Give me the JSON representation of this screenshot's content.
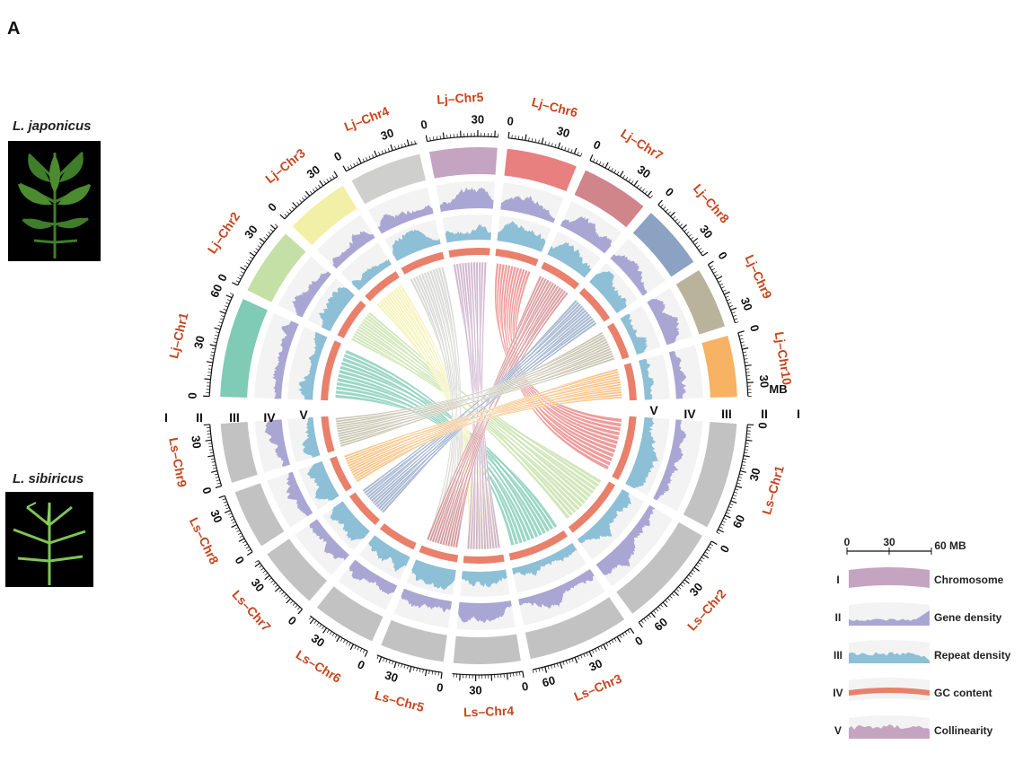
{
  "panel_label": "A",
  "species": {
    "top": "L. japonicus",
    "bottom": "L. sibiricus"
  },
  "unit_label": "MB",
  "track_labels": [
    "I",
    "II",
    "III",
    "IV",
    "V"
  ],
  "chromosomes_top": [
    {
      "name": "Lj–Chr1",
      "length": 62,
      "color": "#7fcbb5",
      "ticks": [
        0,
        30,
        60
      ]
    },
    {
      "name": "Lj–Chr2",
      "length": 42,
      "color": "#c4e0a6",
      "ticks": [
        0,
        30
      ]
    },
    {
      "name": "Lj–Chr3",
      "length": 40,
      "color": "#f2f0a6",
      "ticks": [
        0,
        30
      ]
    },
    {
      "name": "Lj–Chr4",
      "length": 45,
      "color": "#cfcfcd",
      "ticks": [
        0,
        30
      ]
    },
    {
      "name": "Lj–Chr5",
      "length": 42,
      "color": "#c5a4c2",
      "ticks": [
        0,
        30
      ]
    },
    {
      "name": "Lj–Chr6",
      "length": 44,
      "color": "#e88080",
      "ticks": [
        0,
        30
      ]
    },
    {
      "name": "Lj–Chr7",
      "length": 42,
      "color": "#cf8589",
      "ticks": [
        0,
        30
      ]
    },
    {
      "name": "Lj–Chr8",
      "length": 40,
      "color": "#8ca2c3",
      "ticks": [
        0,
        30
      ]
    },
    {
      "name": "Lj–Chr9",
      "length": 38,
      "color": "#b9b39b",
      "ticks": [
        0,
        30
      ]
    },
    {
      "name": "Lj–Chr10",
      "length": 38,
      "color": "#f7b263",
      "ticks": [
        0,
        30
      ]
    }
  ],
  "chromosomes_bottom": [
    {
      "name": "Ls–Chr1",
      "length": 72,
      "ticks": [
        0,
        30,
        60
      ]
    },
    {
      "name": "Ls–Chr2",
      "length": 70,
      "ticks": [
        0,
        30,
        60
      ]
    },
    {
      "name": "Ls–Chr3",
      "length": 68,
      "ticks": [
        0,
        30,
        60
      ]
    },
    {
      "name": "Ls–Chr4",
      "length": 45,
      "ticks": [
        0,
        30
      ]
    },
    {
      "name": "Ls–Chr5",
      "length": 43,
      "ticks": [
        0,
        30
      ]
    },
    {
      "name": "Ls–Chr6",
      "length": 43,
      "ticks": [
        0,
        30
      ]
    },
    {
      "name": "Ls–Chr7",
      "length": 42,
      "ticks": [
        0,
        30
      ]
    },
    {
      "name": "Ls–Chr8",
      "length": 40,
      "ticks": [
        0,
        30
      ]
    },
    {
      "name": "Ls–Chr9",
      "length": 40,
      "ticks": [
        0,
        30
      ]
    }
  ],
  "bottom_chr_color": "#c2c2c2",
  "gene_density_color": "#aaa6d3",
  "repeat_density_color": "#8dbfd6",
  "gc_color": "#e9806b",
  "track_background": "#f3f3f3",
  "legend": {
    "scale_ticks": [
      "0",
      "30",
      "60 MB"
    ],
    "items": [
      {
        "roman": "I",
        "label": "Chromosome",
        "color": "#c5a4c2"
      },
      {
        "roman": "II",
        "label": "Gene density",
        "color": "#aaa6d3"
      },
      {
        "roman": "III",
        "label": "Repeat density",
        "color": "#8dbfd6"
      },
      {
        "roman": "IV",
        "label": "GC content",
        "color": "#e9806b"
      },
      {
        "roman": "V",
        "label": "Collinearity",
        "color": "#c5a4c2"
      }
    ]
  },
  "collinearity": [
    {
      "from": "Lj–Chr1",
      "to": "Ls–Chr3"
    },
    {
      "from": "Lj–Chr2",
      "to": "Ls–Chr2"
    },
    {
      "from": "Lj–Chr3",
      "to": "Ls–Chr4"
    },
    {
      "from": "Lj–Chr4",
      "to": "Ls–Chr5"
    },
    {
      "from": "Lj–Chr5",
      "to": "Ls–Chr4"
    },
    {
      "from": "Lj–Chr6",
      "to": "Ls–Chr1"
    },
    {
      "from": "Lj–Chr7",
      "to": "Ls–Chr5"
    },
    {
      "from": "Lj–Chr8",
      "to": "Ls–Chr7"
    },
    {
      "from": "Lj–Chr9",
      "to": "Ls–Chr9"
    },
    {
      "from": "Lj–Chr10",
      "to": "Ls–Chr8"
    }
  ]
}
